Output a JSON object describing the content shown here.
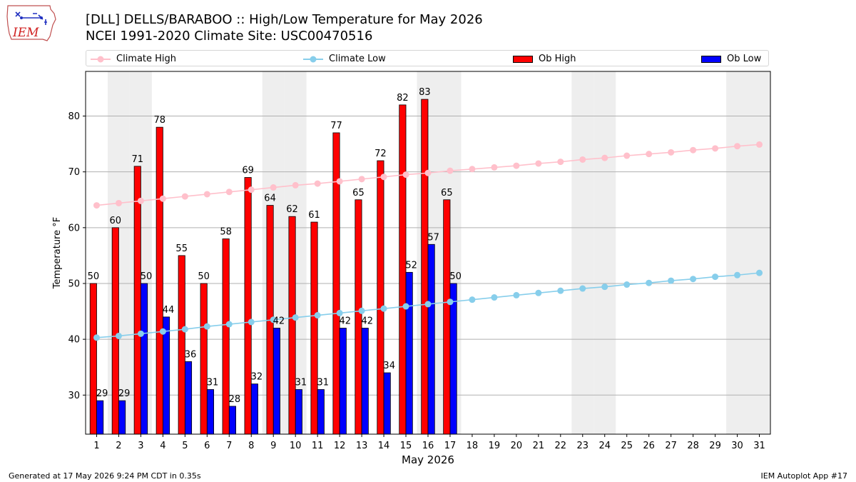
{
  "header": {
    "title": "[DLL] DELLS/BARABOO :: High/Low Temperature for May 2026",
    "subtitle": "NCEI 1991-2020 Climate Site: USC00470516"
  },
  "logo": {
    "text": "IEM"
  },
  "footer": {
    "left": "Generated at 17 May 2026 9:24 PM CDT in 0.35s",
    "right": "IEM Autoplot App #17"
  },
  "chart_data": {
    "type": "bar",
    "title": "[DLL] DELLS/BARABOO :: High/Low Temperature for May 2026",
    "subtitle": "NCEI 1991-2020 Climate Site: USC00470516",
    "xlabel": "May 2026",
    "ylabel": "Temperature °F",
    "ylim": [
      23,
      88
    ],
    "yticks": [
      30,
      40,
      50,
      60,
      70,
      80
    ],
    "grid": "horizontal",
    "legend_position": "top",
    "x": [
      1,
      2,
      3,
      4,
      5,
      6,
      7,
      8,
      9,
      10,
      11,
      12,
      13,
      14,
      15,
      16,
      17,
      18,
      19,
      20,
      21,
      22,
      23,
      24,
      25,
      26,
      27,
      28,
      29,
      30,
      31
    ],
    "weekend_shaded_days": [
      2,
      3,
      9,
      10,
      16,
      17,
      23,
      24,
      30,
      31
    ],
    "series": [
      {
        "name": "Ob High",
        "kind": "bar",
        "color": "#ff0000",
        "values": [
          50,
          60,
          71,
          78,
          55,
          50,
          58,
          69,
          64,
          62,
          61,
          77,
          65,
          72,
          82,
          83,
          65,
          null,
          null,
          null,
          null,
          null,
          null,
          null,
          null,
          null,
          null,
          null,
          null,
          null,
          null
        ]
      },
      {
        "name": "Ob Low",
        "kind": "bar",
        "color": "#0000ff",
        "values": [
          29,
          29,
          50,
          44,
          36,
          31,
          28,
          32,
          42,
          31,
          31,
          42,
          42,
          34,
          52,
          57,
          50,
          null,
          null,
          null,
          null,
          null,
          null,
          null,
          null,
          null,
          null,
          null,
          null,
          null,
          null
        ]
      },
      {
        "name": "Climate High",
        "kind": "line",
        "color": "#ffc0cb",
        "values": [
          64.0,
          64.4,
          64.8,
          65.2,
          65.6,
          66.0,
          66.4,
          66.8,
          67.2,
          67.6,
          67.9,
          68.3,
          68.7,
          69.1,
          69.5,
          69.8,
          70.2,
          70.5,
          70.8,
          71.1,
          71.5,
          71.8,
          72.2,
          72.5,
          72.9,
          73.2,
          73.5,
          73.9,
          74.2,
          74.6,
          74.9
        ]
      },
      {
        "name": "Climate Low",
        "kind": "line",
        "color": "#87ceeb",
        "values": [
          40.3,
          40.6,
          41.0,
          41.4,
          41.8,
          42.3,
          42.7,
          43.1,
          43.5,
          43.9,
          44.3,
          44.7,
          45.1,
          45.5,
          45.9,
          46.3,
          46.7,
          47.1,
          47.5,
          47.9,
          48.3,
          48.7,
          49.1,
          49.4,
          49.8,
          50.1,
          50.5,
          50.8,
          51.2,
          51.5,
          51.9
        ]
      }
    ],
    "bar_labels": {
      "high": [
        "50",
        "60",
        "71",
        "78",
        "55",
        "50",
        "58",
        "69",
        "64",
        "62",
        "61",
        "77",
        "65",
        "72",
        "82",
        "83",
        "65"
      ],
      "low": [
        "29",
        "29",
        "50",
        "44",
        "36",
        "31",
        "28",
        "32",
        "42",
        "31",
        "31",
        "42",
        "42",
        "34",
        "52",
        "57",
        "50"
      ]
    },
    "legend": [
      "Climate High",
      "Climate Low",
      "Ob High",
      "Ob Low"
    ]
  }
}
